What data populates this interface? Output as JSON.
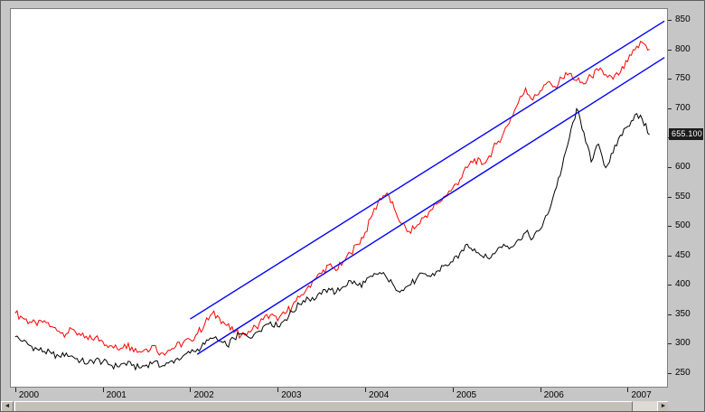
{
  "chart_data": {
    "type": "line",
    "title": "",
    "xlabel": "",
    "ylabel": "",
    "xlim": [
      1999.95,
      2007.45
    ],
    "ylim": [
      250,
      850
    ],
    "x_start": 2000.0,
    "x_step": 0.0833333,
    "grid": false,
    "y_ticks": [
      250,
      300,
      350,
      400,
      450,
      500,
      550,
      600,
      650,
      700,
      750,
      800,
      850
    ],
    "x_ticks": [
      2000,
      2001,
      2002,
      2003,
      2004,
      2005,
      2006,
      2007
    ],
    "series": [
      {
        "name": "red",
        "color": "#ff0000",
        "jitter": 7,
        "values": [
          352,
          344,
          337,
          331,
          339,
          329,
          321,
          317,
          324,
          314,
          307,
          311,
          304,
          297,
          291,
          299,
          294,
          287,
          291,
          297,
          284,
          289,
          295,
          301,
          307,
          317,
          334,
          351,
          344,
          331,
          319,
          314,
          321,
          329,
          341,
          349,
          339,
          351,
          364,
          379,
          394,
          409,
          419,
          434,
          424,
          439,
          454,
          469,
          489,
          519,
          547,
          556,
          529,
          504,
          491,
          499,
          514,
          527,
          539,
          551,
          564,
          579,
          599,
          614,
          604,
          619,
          639,
          659,
          684,
          709,
          734,
          714,
          729,
          744,
          737,
          751,
          759,
          747,
          741,
          754,
          764,
          757,
          749,
          761,
          779,
          799,
          812,
          800
        ]
      },
      {
        "name": "black",
        "color": "#000000",
        "jitter": 6,
        "values": [
          312,
          304,
          297,
          291,
          287,
          283,
          279,
          284,
          277,
          271,
          267,
          273,
          269,
          264,
          261,
          267,
          263,
          259,
          264,
          269,
          261,
          267,
          273,
          279,
          284,
          291,
          299,
          309,
          304,
          297,
          309,
          317,
          311,
          319,
          329,
          337,
          329,
          341,
          354,
          367,
          379,
          374,
          384,
          394,
          387,
          397,
          407,
          399,
          404,
          414,
          421,
          411,
          397,
          391,
          399,
          409,
          419,
          414,
          424,
          434,
          439,
          454,
          469,
          461,
          449,
          444,
          457,
          469,
          464,
          477,
          489,
          479,
          494,
          519,
          559,
          599,
          649,
          699,
          659,
          609,
          639,
          599,
          624,
          654,
          669,
          689,
          681,
          655.1
        ]
      }
    ],
    "trend_channel": {
      "color": "#0000ff",
      "lines": [
        {
          "x1": 2002.0,
          "y1": 342,
          "x2": 2007.42,
          "y2": 848
        },
        {
          "x1": 2002.08,
          "y1": 282,
          "x2": 2007.42,
          "y2": 786
        }
      ]
    },
    "last_price_label": {
      "value": "655.100",
      "y": 655.1,
      "bg": "#1c1c1c",
      "fg": "#ffffff"
    }
  },
  "scrollbar": {
    "left_arrow_icon": "◄",
    "right_arrow_icon": "►"
  }
}
